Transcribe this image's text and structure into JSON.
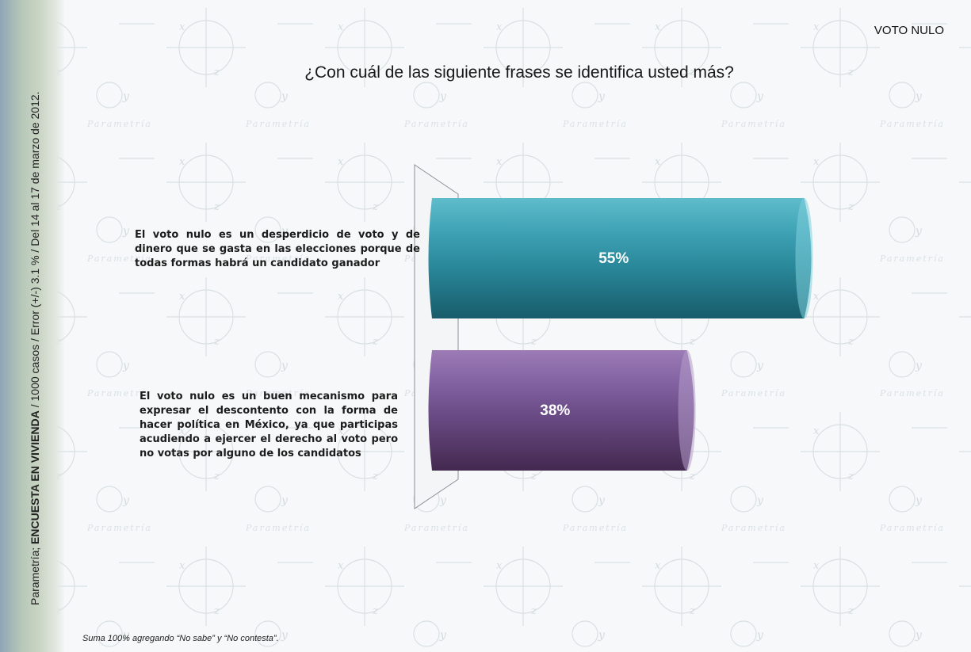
{
  "header": {
    "section_label": "VOTO NULO",
    "title": "¿Con cuál de las siguiente frases se identifica usted más?"
  },
  "side": {
    "source_prefix": "Parametría; ",
    "source_bold": "ENCUESTA EN VIVIENDA",
    "source_rest": " / 1000 casos / Error (+/-) 3.1 % / Del 14 al 17 de marzo de 2012."
  },
  "footnote": "Suma 100%  agregando “No sabe” y “No contesta”.",
  "colors": {
    "bar1": "#2a8a9c",
    "bar2": "#6a4a84",
    "watermark": "#cfd8dc"
  },
  "chart_data": {
    "type": "bar",
    "orientation": "horizontal",
    "categories": [
      "El voto nulo es un desperdicio de voto y de dinero que se gasta en las elecciones porque de todas formas habrá un candidato ganador",
      "El voto nulo es un buen mecanismo para expresar el descontento con la forma de hacer política en México, ya que participas acudiendo a ejercer el derecho al voto pero no votas por alguno de los candidatos"
    ],
    "values": [
      55,
      38
    ],
    "value_labels": [
      "55%",
      "38%"
    ],
    "unit": "%",
    "xlim": [
      0,
      100
    ],
    "grid": false,
    "legend": "none"
  }
}
